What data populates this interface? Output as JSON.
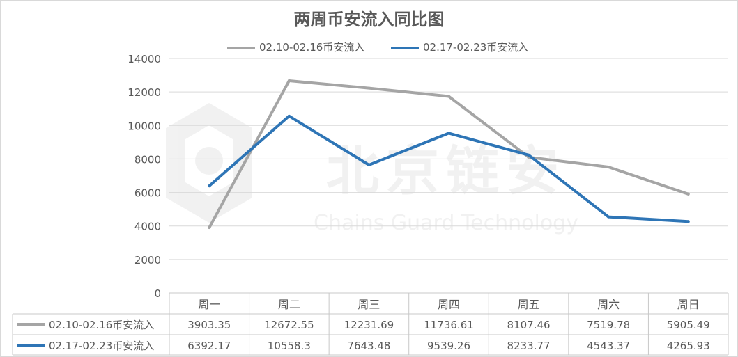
{
  "chart_data": {
    "type": "line",
    "title": "两周币安流入同比图",
    "categories": [
      "周一",
      "周二",
      "周三",
      "周四",
      "周五",
      "周六",
      "周日"
    ],
    "series": [
      {
        "name": "02.10-02.16币安流入",
        "color": "#a5a5a5",
        "values": [
          3903.35,
          12672.55,
          12231.69,
          11736.61,
          8107.46,
          7519.78,
          5905.49
        ],
        "labels": [
          "3903.35",
          "12672.55",
          "12231.69",
          "11736.61",
          "8107.46",
          "7519.78",
          "5905.49"
        ]
      },
      {
        "name": "02.17-02.23币安流入",
        "color": "#2e75b6",
        "values": [
          6392.17,
          10558.3,
          7643.48,
          9539.26,
          8233.77,
          4543.37,
          4265.93
        ],
        "labels": [
          "6392.17",
          "10558.3",
          "7643.48",
          "9539.26",
          "8233.77",
          "4543.37",
          "4265.93"
        ]
      }
    ],
    "yticks": [
      "0",
      "2000",
      "4000",
      "6000",
      "8000",
      "10000",
      "12000",
      "14000"
    ],
    "ylim": [
      0,
      14000
    ],
    "grid": true,
    "legend": "top",
    "data_table": true
  },
  "watermark": {
    "name": "北京链安",
    "subtitle": "Chains Guard Technology"
  }
}
